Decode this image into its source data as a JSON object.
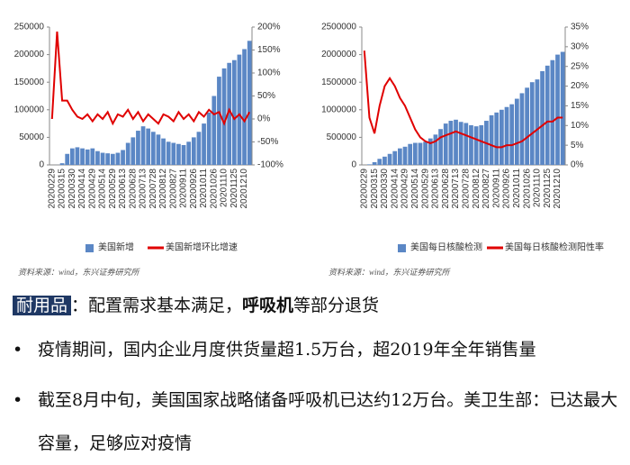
{
  "charts": [
    {
      "chart_data": {
        "type": "combo",
        "categories": [
          "20200229",
          null,
          "20200315",
          null,
          "20200330",
          null,
          "20200414",
          null,
          "20200429",
          null,
          "20200514",
          null,
          "20200529",
          null,
          "20200613",
          null,
          "20200628",
          null,
          "20200713",
          null,
          "20200728",
          null,
          "20200812",
          null,
          "20200827",
          null,
          "20200911",
          null,
          "20200926",
          null,
          "20201011",
          null,
          "20201026",
          null,
          "20201110",
          null,
          "20201125",
          null,
          "20201210",
          null
        ],
        "series": [
          {
            "name": "美国新增",
            "color": "#5b87c5",
            "kind": "bar",
            "axis": "y",
            "values": [
              0,
              100,
              3000,
              20000,
              30000,
              32000,
              30000,
              28000,
              30000,
              25000,
              22000,
              21000,
              20000,
              22000,
              27000,
              40000,
              50000,
              62000,
              70000,
              66000,
              60000,
              55000,
              48000,
              42000,
              40000,
              38000,
              36000,
              42000,
              50000,
              60000,
              75000,
              95000,
              125000,
              160000,
              175000,
              185000,
              190000,
              200000,
              210000,
              225000
            ]
          },
          {
            "name": "美国新增环比增速",
            "color": "#e00000",
            "kind": "line",
            "axis": "y2",
            "values": [
              0,
              190,
              40,
              40,
              20,
              5,
              0,
              10,
              -5,
              10,
              0,
              15,
              -10,
              10,
              5,
              20,
              0,
              15,
              -5,
              10,
              0,
              -10,
              10,
              5,
              -5,
              15,
              0,
              10,
              -5,
              15,
              5,
              20,
              10,
              15,
              -10,
              20,
              0,
              10,
              -5,
              15
            ]
          }
        ],
        "ylim": [
          0,
          250000
        ],
        "yticks": [
          0,
          50000,
          100000,
          150000,
          200000,
          250000
        ],
        "y2lim": [
          -100,
          200
        ],
        "y2ticks": [
          {
            "value": -100,
            "label": "-100%"
          },
          {
            "value": -50,
            "label": "-50%"
          },
          {
            "value": 0,
            "label": "0%"
          },
          {
            "value": 50,
            "label": "50%"
          },
          {
            "value": 100,
            "label": "100%"
          },
          {
            "value": 150,
            "label": "150%"
          },
          {
            "value": 200,
            "label": "200%"
          }
        ],
        "source": "资料来源：wind，东兴证券研究所"
      }
    },
    {
      "chart_data": {
        "type": "combo",
        "categories": [
          "20200229",
          null,
          "20200315",
          null,
          "20200330",
          null,
          "20200414",
          null,
          "20200429",
          null,
          "20200514",
          null,
          "20200529",
          null,
          "20200613",
          null,
          "20200628",
          null,
          "20200713",
          null,
          "20200728",
          null,
          "20200812",
          null,
          "20200827",
          null,
          "20200911",
          null,
          "20200926",
          null,
          "20201011",
          null,
          "20201026",
          null,
          "20201110",
          null,
          "20201125",
          null,
          "20201210",
          null
        ],
        "series": [
          {
            "name": "美国每日核酸检测",
            "color": "#5b87c5",
            "kind": "bar",
            "axis": "y",
            "values": [
              0,
              10000,
              50000,
              110000,
              150000,
              200000,
              250000,
              300000,
              330000,
              380000,
              400000,
              400000,
              420000,
              480000,
              550000,
              650000,
              750000,
              800000,
              820000,
              780000,
              760000,
              720000,
              700000,
              720000,
              800000,
              900000,
              950000,
              1000000,
              1050000,
              1100000,
              1200000,
              1300000,
              1400000,
              1500000,
              1550000,
              1700000,
              1800000,
              1900000,
              2000000,
              2050000
            ]
          },
          {
            "name": "美国每日核酸检测阳性率",
            "color": "#e00000",
            "kind": "line",
            "axis": "y2",
            "values": [
              29,
              12,
              8,
              15,
              20,
              22,
              20,
              17,
              15,
              12,
              9,
              7,
              6,
              5.5,
              6,
              7,
              7.5,
              8,
              8.5,
              8,
              7.5,
              7,
              6.5,
              6,
              5.5,
              5,
              4.5,
              4.5,
              5,
              5,
              5.5,
              6,
              7,
              8,
              9,
              10,
              11,
              11,
              12,
              12
            ]
          }
        ],
        "ylim": [
          0,
          2500000
        ],
        "yticks": [
          0,
          500000,
          1000000,
          1500000,
          2000000,
          2500000
        ],
        "y2lim": [
          0,
          35
        ],
        "y2ticks": [
          {
            "value": 0,
            "label": "0%"
          },
          {
            "value": 5,
            "label": "5%"
          },
          {
            "value": 10,
            "label": "10%"
          },
          {
            "value": 15,
            "label": "15%"
          },
          {
            "value": 20,
            "label": "20%"
          },
          {
            "value": 25,
            "label": "25%"
          },
          {
            "value": 30,
            "label": "30%"
          },
          {
            "value": 35,
            "label": "35%"
          }
        ],
        "source": "资料来源：wind，东兴证券研究所"
      }
    }
  ],
  "body": {
    "tag": "耐用品",
    "lead": "：配置需求基本满足，",
    "bold": "呼吸机",
    "tail": "等部分退货",
    "bullets": [
      "疫情期间，国内企业月度供货量超1.5万台，超2019年全年销售量",
      "截至8月中旬，美国国家战略储备呼吸机已达约12万台。美卫生部：已达最大容量，足够应对疫情"
    ]
  }
}
